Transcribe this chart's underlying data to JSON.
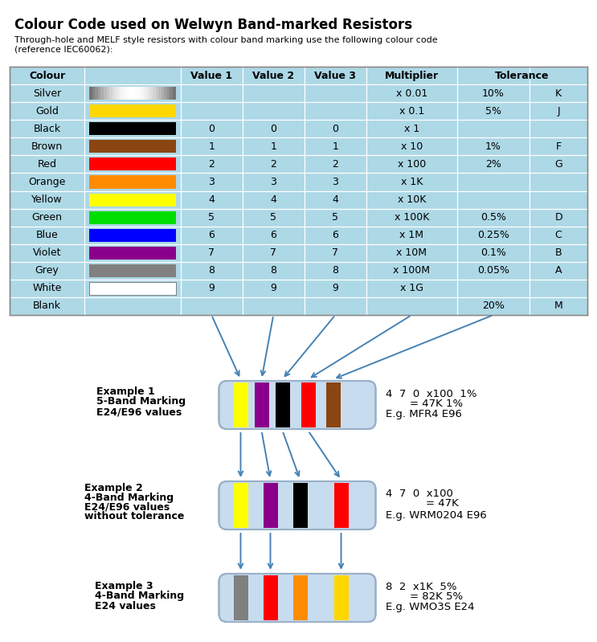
{
  "title": "Colour Code used on Welwyn Band-marked Resistors",
  "subtitle": "Through-hole and MELF style resistors with colour band marking use the following colour code\n(reference IEC60062):",
  "table": {
    "rows": [
      {
        "name": "Silver",
        "color": "#C0C0C0",
        "silver": true,
        "val1": "",
        "val2": "",
        "val3": "",
        "mult": "x 0.01",
        "tol": "10%",
        "code": "K"
      },
      {
        "name": "Gold",
        "color": "#FFD700",
        "silver": false,
        "val1": "",
        "val2": "",
        "val3": "",
        "mult": "x 0.1",
        "tol": "5%",
        "code": "J"
      },
      {
        "name": "Black",
        "color": "#000000",
        "silver": false,
        "val1": "0",
        "val2": "0",
        "val3": "0",
        "mult": "x 1",
        "tol": "",
        "code": ""
      },
      {
        "name": "Brown",
        "color": "#8B4513",
        "silver": false,
        "val1": "1",
        "val2": "1",
        "val3": "1",
        "mult": "x 10",
        "tol": "1%",
        "code": "F"
      },
      {
        "name": "Red",
        "color": "#FF0000",
        "silver": false,
        "val1": "2",
        "val2": "2",
        "val3": "2",
        "mult": "x 100",
        "tol": "2%",
        "code": "G"
      },
      {
        "name": "Orange",
        "color": "#FF8C00",
        "silver": false,
        "val1": "3",
        "val2": "3",
        "val3": "3",
        "mult": "x 1K",
        "tol": "",
        "code": ""
      },
      {
        "name": "Yellow",
        "color": "#FFFF00",
        "silver": false,
        "val1": "4",
        "val2": "4",
        "val3": "4",
        "mult": "x 10K",
        "tol": "",
        "code": ""
      },
      {
        "name": "Green",
        "color": "#00DD00",
        "silver": false,
        "val1": "5",
        "val2": "5",
        "val3": "5",
        "mult": "x 100K",
        "tol": "0.5%",
        "code": "D"
      },
      {
        "name": "Blue",
        "color": "#0000FF",
        "silver": false,
        "val1": "6",
        "val2": "6",
        "val3": "6",
        "mult": "x 1M",
        "tol": "0.25%",
        "code": "C"
      },
      {
        "name": "Violet",
        "color": "#8B008B",
        "silver": false,
        "val1": "7",
        "val2": "7",
        "val3": "7",
        "mult": "x 10M",
        "tol": "0.1%",
        "code": "B"
      },
      {
        "name": "Grey",
        "color": "#808080",
        "silver": false,
        "val1": "8",
        "val2": "8",
        "val3": "8",
        "mult": "x 100M",
        "tol": "0.05%",
        "code": "A"
      },
      {
        "name": "White",
        "color": "#FFFFFF",
        "silver": false,
        "val1": "9",
        "val2": "9",
        "val3": "9",
        "mult": "x 1G",
        "tol": "",
        "code": ""
      },
      {
        "name": "Blank",
        "color": null,
        "silver": false,
        "val1": "",
        "val2": "",
        "val3": "",
        "mult": "",
        "tol": "20%",
        "code": "M"
      }
    ]
  },
  "table_bg": "#ADD8E6",
  "arrow_color": "#4682B4",
  "examples": [
    {
      "label1": "Example 1",
      "label2": "5-Band Marking",
      "label3": "E24/E96 values",
      "label4": "",
      "bands": [
        "#FFFF00",
        "#8B008B",
        "#000000",
        "#FF0000",
        "#8B4513"
      ],
      "result1": "4  7  0  x100  1%",
      "result2": "= 47K 1%",
      "result3": "E.g. MFR4 E96",
      "num_bands": 5
    },
    {
      "label1": "Example 2",
      "label2": "4-Band Marking",
      "label3": "E24/E96 values",
      "label4": "without tolerance",
      "bands": [
        "#FFFF00",
        "#8B008B",
        "#000000",
        "#FF0000"
      ],
      "result1": "4  7  0  x100",
      "result2": "= 47K",
      "result3": "E.g. WRM0204 E96",
      "num_bands": 4
    },
    {
      "label1": "Example 3",
      "label2": "4-Band Marking",
      "label3": "E24 values",
      "label4": "",
      "bands": [
        "#808080",
        "#FF0000",
        "#FF8C00",
        "#FFD700"
      ],
      "result1": "8  2  x1K  5%",
      "result2": "= 82K 5%",
      "result3": "E.g. WMO3S E24",
      "num_bands": 4
    }
  ],
  "resistor_fill": "#C8DCF0",
  "resistor_edge": "#9AB0C8"
}
